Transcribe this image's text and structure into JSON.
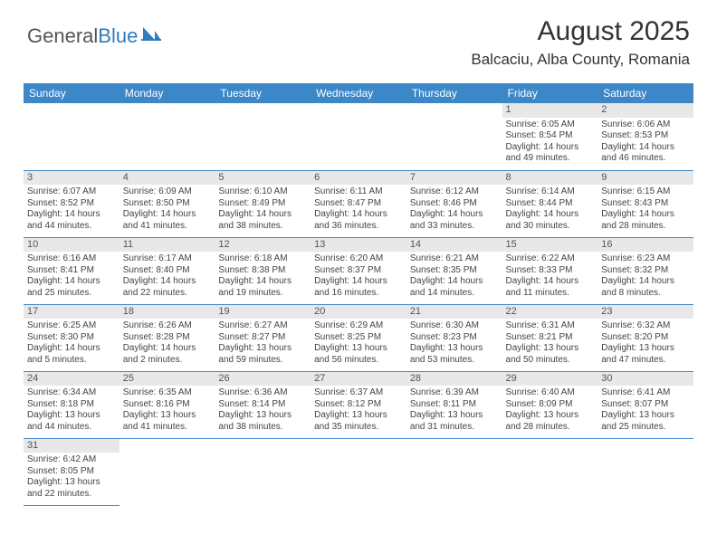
{
  "logo": {
    "part1": "General",
    "part2": "Blue"
  },
  "title": "August 2025",
  "location": "Balcaciu, Alba County, Romania",
  "colors": {
    "header_bg": "#3b87c8",
    "header_text": "#ffffff",
    "border": "#3b87c8",
    "daynum_bg": "#e8e8e8",
    "text": "#444444",
    "logo_blue": "#2f7bbf"
  },
  "weekdays": [
    "Sunday",
    "Monday",
    "Tuesday",
    "Wednesday",
    "Thursday",
    "Friday",
    "Saturday"
  ],
  "weeks": [
    [
      null,
      null,
      null,
      null,
      null,
      {
        "n": "1",
        "sr": "6:05 AM",
        "ss": "8:54 PM",
        "dl": "14 hours and 49 minutes."
      },
      {
        "n": "2",
        "sr": "6:06 AM",
        "ss": "8:53 PM",
        "dl": "14 hours and 46 minutes."
      }
    ],
    [
      {
        "n": "3",
        "sr": "6:07 AM",
        "ss": "8:52 PM",
        "dl": "14 hours and 44 minutes."
      },
      {
        "n": "4",
        "sr": "6:09 AM",
        "ss": "8:50 PM",
        "dl": "14 hours and 41 minutes."
      },
      {
        "n": "5",
        "sr": "6:10 AM",
        "ss": "8:49 PM",
        "dl": "14 hours and 38 minutes."
      },
      {
        "n": "6",
        "sr": "6:11 AM",
        "ss": "8:47 PM",
        "dl": "14 hours and 36 minutes."
      },
      {
        "n": "7",
        "sr": "6:12 AM",
        "ss": "8:46 PM",
        "dl": "14 hours and 33 minutes."
      },
      {
        "n": "8",
        "sr": "6:14 AM",
        "ss": "8:44 PM",
        "dl": "14 hours and 30 minutes."
      },
      {
        "n": "9",
        "sr": "6:15 AM",
        "ss": "8:43 PM",
        "dl": "14 hours and 28 minutes."
      }
    ],
    [
      {
        "n": "10",
        "sr": "6:16 AM",
        "ss": "8:41 PM",
        "dl": "14 hours and 25 minutes."
      },
      {
        "n": "11",
        "sr": "6:17 AM",
        "ss": "8:40 PM",
        "dl": "14 hours and 22 minutes."
      },
      {
        "n": "12",
        "sr": "6:18 AM",
        "ss": "8:38 PM",
        "dl": "14 hours and 19 minutes."
      },
      {
        "n": "13",
        "sr": "6:20 AM",
        "ss": "8:37 PM",
        "dl": "14 hours and 16 minutes."
      },
      {
        "n": "14",
        "sr": "6:21 AM",
        "ss": "8:35 PM",
        "dl": "14 hours and 14 minutes."
      },
      {
        "n": "15",
        "sr": "6:22 AM",
        "ss": "8:33 PM",
        "dl": "14 hours and 11 minutes."
      },
      {
        "n": "16",
        "sr": "6:23 AM",
        "ss": "8:32 PM",
        "dl": "14 hours and 8 minutes."
      }
    ],
    [
      {
        "n": "17",
        "sr": "6:25 AM",
        "ss": "8:30 PM",
        "dl": "14 hours and 5 minutes."
      },
      {
        "n": "18",
        "sr": "6:26 AM",
        "ss": "8:28 PM",
        "dl": "14 hours and 2 minutes."
      },
      {
        "n": "19",
        "sr": "6:27 AM",
        "ss": "8:27 PM",
        "dl": "13 hours and 59 minutes."
      },
      {
        "n": "20",
        "sr": "6:29 AM",
        "ss": "8:25 PM",
        "dl": "13 hours and 56 minutes."
      },
      {
        "n": "21",
        "sr": "6:30 AM",
        "ss": "8:23 PM",
        "dl": "13 hours and 53 minutes."
      },
      {
        "n": "22",
        "sr": "6:31 AM",
        "ss": "8:21 PM",
        "dl": "13 hours and 50 minutes."
      },
      {
        "n": "23",
        "sr": "6:32 AM",
        "ss": "8:20 PM",
        "dl": "13 hours and 47 minutes."
      }
    ],
    [
      {
        "n": "24",
        "sr": "6:34 AM",
        "ss": "8:18 PM",
        "dl": "13 hours and 44 minutes."
      },
      {
        "n": "25",
        "sr": "6:35 AM",
        "ss": "8:16 PM",
        "dl": "13 hours and 41 minutes."
      },
      {
        "n": "26",
        "sr": "6:36 AM",
        "ss": "8:14 PM",
        "dl": "13 hours and 38 minutes."
      },
      {
        "n": "27",
        "sr": "6:37 AM",
        "ss": "8:12 PM",
        "dl": "13 hours and 35 minutes."
      },
      {
        "n": "28",
        "sr": "6:39 AM",
        "ss": "8:11 PM",
        "dl": "13 hours and 31 minutes."
      },
      {
        "n": "29",
        "sr": "6:40 AM",
        "ss": "8:09 PM",
        "dl": "13 hours and 28 minutes."
      },
      {
        "n": "30",
        "sr": "6:41 AM",
        "ss": "8:07 PM",
        "dl": "13 hours and 25 minutes."
      }
    ],
    [
      {
        "n": "31",
        "sr": "6:42 AM",
        "ss": "8:05 PM",
        "dl": "13 hours and 22 minutes."
      },
      null,
      null,
      null,
      null,
      null,
      null
    ]
  ],
  "labels": {
    "sunrise": "Sunrise: ",
    "sunset": "Sunset: ",
    "daylight": "Daylight: "
  }
}
